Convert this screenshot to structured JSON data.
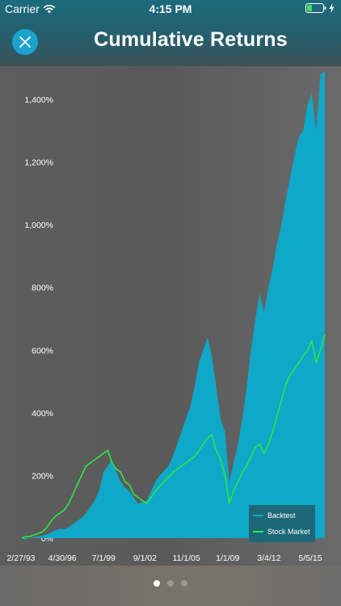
{
  "status_bar": {
    "carrier": "Carrier",
    "time": "4:15 PM"
  },
  "header": {
    "title": "Cumulative Returns",
    "close_icon": "close-icon"
  },
  "colors": {
    "backtest": "#0fa8c8",
    "stock_market": "#2ee64a",
    "close_button": "#1ba3cc",
    "legend_bg": "#1d6878"
  },
  "chart_data": {
    "type": "area",
    "title": "Cumulative Returns",
    "xlabel": "",
    "ylabel": "",
    "y_unit": "%",
    "ylim": [
      0,
      1500
    ],
    "y_ticks": [
      0,
      200,
      400,
      600,
      800,
      1000,
      1200,
      1400
    ],
    "y_tick_labels": [
      "0%",
      "200%",
      "400%",
      "600%",
      "800%",
      "1,000%",
      "1,200%",
      "1,400%"
    ],
    "x_tick_labels": [
      "2/27/93",
      "4/30/96",
      "7/1/99",
      "9/1/02",
      "11/1/05",
      "1/1/09",
      "3/4/12",
      "5/5/15"
    ],
    "x_range": [
      "1993-02-27",
      "2016-06-01"
    ],
    "x": [
      "1993-02-27",
      "1993-06-01",
      "1993-10-01",
      "1994-02-01",
      "1994-06-01",
      "1994-10-01",
      "1995-02-01",
      "1995-06-01",
      "1995-10-01",
      "1996-02-01",
      "1996-06-01",
      "1996-10-01",
      "1997-02-01",
      "1997-06-01",
      "1997-10-01",
      "1998-02-01",
      "1998-06-01",
      "1998-10-01",
      "1999-02-01",
      "1999-06-01",
      "1999-10-01",
      "2000-02-01",
      "2000-06-01",
      "2000-10-01",
      "2001-02-01",
      "2001-06-01",
      "2001-10-01",
      "2002-02-01",
      "2002-06-01",
      "2002-10-01",
      "2003-02-01",
      "2003-06-01",
      "2003-10-01",
      "2004-02-01",
      "2004-06-01",
      "2004-10-01",
      "2005-02-01",
      "2005-06-01",
      "2005-10-01",
      "2006-02-01",
      "2006-06-01",
      "2006-10-01",
      "2007-02-01",
      "2007-06-01",
      "2007-10-01",
      "2008-02-01",
      "2008-06-01",
      "2008-10-01",
      "2009-02-01",
      "2009-06-01",
      "2009-10-01",
      "2010-02-01",
      "2010-06-01",
      "2010-10-01",
      "2011-02-01",
      "2011-06-01",
      "2011-10-01",
      "2012-02-01",
      "2012-06-01",
      "2012-10-01",
      "2013-02-01",
      "2013-06-01",
      "2013-10-01",
      "2014-02-01",
      "2014-06-01",
      "2014-10-01",
      "2015-02-01",
      "2015-06-01",
      "2015-10-01",
      "2016-02-01",
      "2016-06-01"
    ],
    "series": [
      {
        "name": "Backtest",
        "type": "area",
        "values": [
          0,
          -5,
          0,
          3,
          5,
          8,
          12,
          18,
          25,
          30,
          28,
          35,
          45,
          55,
          65,
          80,
          100,
          120,
          150,
          210,
          230,
          250,
          210,
          180,
          160,
          150,
          130,
          110,
          115,
          120,
          150,
          180,
          200,
          215,
          230,
          260,
          300,
          340,
          380,
          420,
          480,
          560,
          600,
          640,
          580,
          480,
          380,
          340,
          180,
          240,
          300,
          380,
          480,
          600,
          700,
          780,
          720,
          800,
          860,
          940,
          1000,
          1080,
          1150,
          1220,
          1280,
          1300,
          1380,
          1420,
          1300,
          1480,
          1490
        ]
      },
      {
        "name": "Stock Market",
        "type": "line",
        "values": [
          0,
          5,
          5,
          10,
          15,
          20,
          35,
          55,
          70,
          80,
          90,
          110,
          140,
          170,
          200,
          230,
          240,
          250,
          260,
          270,
          280,
          240,
          220,
          210,
          180,
          170,
          140,
          130,
          120,
          110,
          130,
          150,
          165,
          180,
          195,
          210,
          220,
          230,
          240,
          250,
          260,
          280,
          300,
          320,
          330,
          280,
          250,
          200,
          110,
          150,
          180,
          210,
          230,
          260,
          290,
          300,
          270,
          300,
          340,
          390,
          440,
          490,
          520,
          540,
          560,
          580,
          600,
          630,
          560,
          600,
          650
        ]
      }
    ],
    "legend": {
      "placement": "bottom-right",
      "entries": [
        "Backtest",
        "Stock Market"
      ]
    },
    "grid": false
  },
  "pagination": {
    "count": 3,
    "active_index": 0
  }
}
